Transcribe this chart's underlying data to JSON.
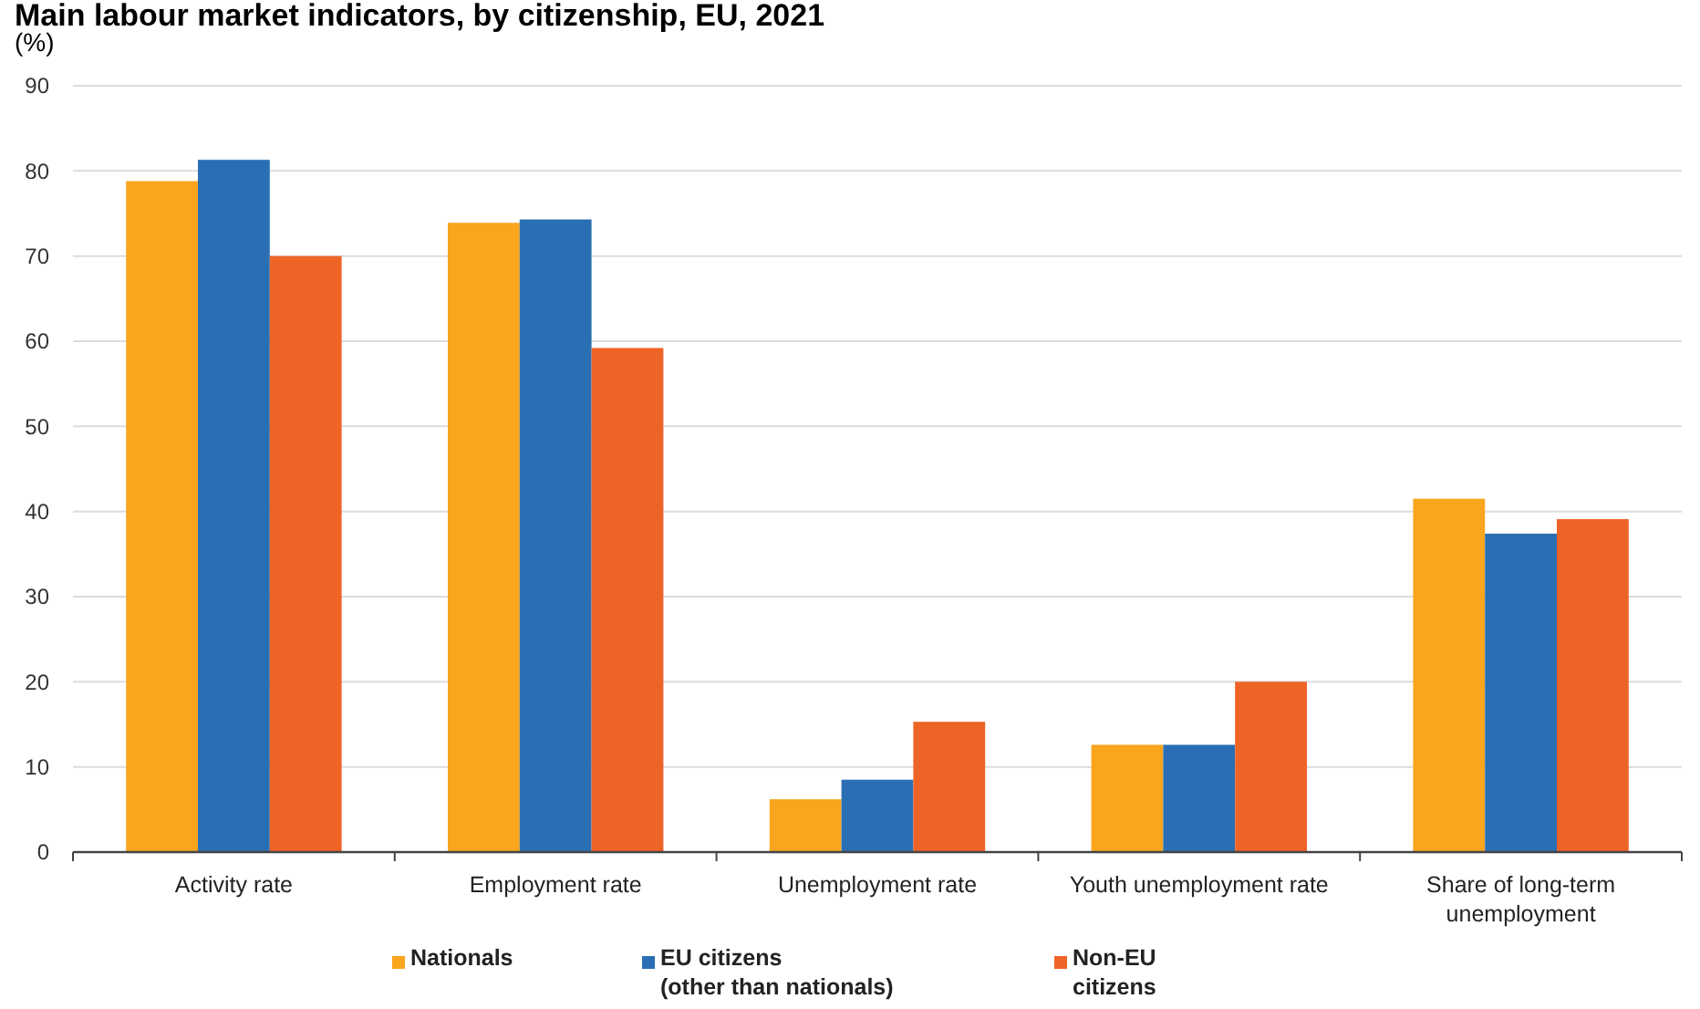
{
  "chart_data": {
    "type": "bar",
    "title": "Main labour market indicators, by citizenship, EU, 2021",
    "ylabel": "(%)",
    "categories": [
      "Activity rate",
      "Employment rate",
      "Unemployment rate",
      "Youth unemployment rate",
      "Share of long-term unemployment"
    ],
    "series": [
      {
        "name": "Nationals",
        "color": "#f9a51d",
        "values": [
          78.8,
          73.9,
          6.2,
          12.6,
          41.5
        ]
      },
      {
        "name": "EU citizens (other than nationals)",
        "color": "#2a6fb4",
        "values": [
          81.3,
          74.3,
          8.5,
          12.6,
          37.4
        ]
      },
      {
        "name": "Non-EU citizens",
        "color": "#ee6326",
        "values": [
          70.0,
          59.2,
          15.3,
          20.0,
          39.1
        ]
      }
    ],
    "ylim": [
      0,
      90
    ],
    "yticks": [
      0,
      10,
      20,
      30,
      40,
      50,
      60,
      70,
      80,
      90
    ],
    "grid": "y",
    "legend": "bottom"
  }
}
